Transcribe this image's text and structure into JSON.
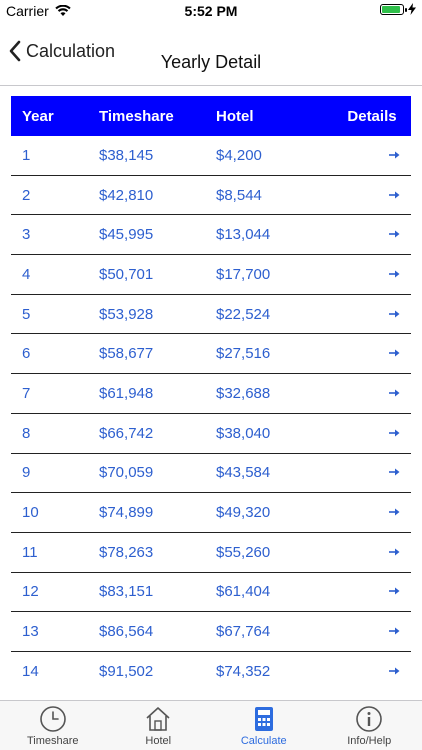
{
  "status": {
    "carrier": "Carrier",
    "time": "5:52 PM"
  },
  "nav": {
    "back_label": "Calculation",
    "title": "Yearly Detail"
  },
  "table": {
    "headers": [
      "Year",
      "Timeshare",
      "Hotel",
      "Details"
    ],
    "rows": [
      {
        "year": "1",
        "timeshare": "$38,145",
        "hotel": "$4,200"
      },
      {
        "year": "2",
        "timeshare": "$42,810",
        "hotel": "$8,544"
      },
      {
        "year": "3",
        "timeshare": "$45,995",
        "hotel": "$13,044"
      },
      {
        "year": "4",
        "timeshare": "$50,701",
        "hotel": "$17,700"
      },
      {
        "year": "5",
        "timeshare": "$53,928",
        "hotel": "$22,524"
      },
      {
        "year": "6",
        "timeshare": "$58,677",
        "hotel": "$27,516"
      },
      {
        "year": "7",
        "timeshare": "$61,948",
        "hotel": "$32,688"
      },
      {
        "year": "8",
        "timeshare": "$66,742",
        "hotel": "$38,040"
      },
      {
        "year": "9",
        "timeshare": "$70,059",
        "hotel": "$43,584"
      },
      {
        "year": "10",
        "timeshare": "$74,899",
        "hotel": "$49,320"
      },
      {
        "year": "11",
        "timeshare": "$78,263",
        "hotel": "$55,260"
      },
      {
        "year": "12",
        "timeshare": "$83,151",
        "hotel": "$61,404"
      },
      {
        "year": "13",
        "timeshare": "$86,564",
        "hotel": "$67,764"
      },
      {
        "year": "14",
        "timeshare": "$91,502",
        "hotel": "$74,352"
      }
    ]
  },
  "tabs": [
    {
      "label": "Timeshare",
      "icon": "clock-icon",
      "active": false
    },
    {
      "label": "Hotel",
      "icon": "house-icon",
      "active": false
    },
    {
      "label": "Calculate",
      "icon": "calculator-icon",
      "active": true
    },
    {
      "label": "Info/Help",
      "icon": "info-icon",
      "active": false
    }
  ],
  "colors": {
    "header_bg": "#0000ff",
    "link_blue": "#2d5fcf",
    "tab_active": "#2d6cdf",
    "battery": "#2fbf4a"
  }
}
